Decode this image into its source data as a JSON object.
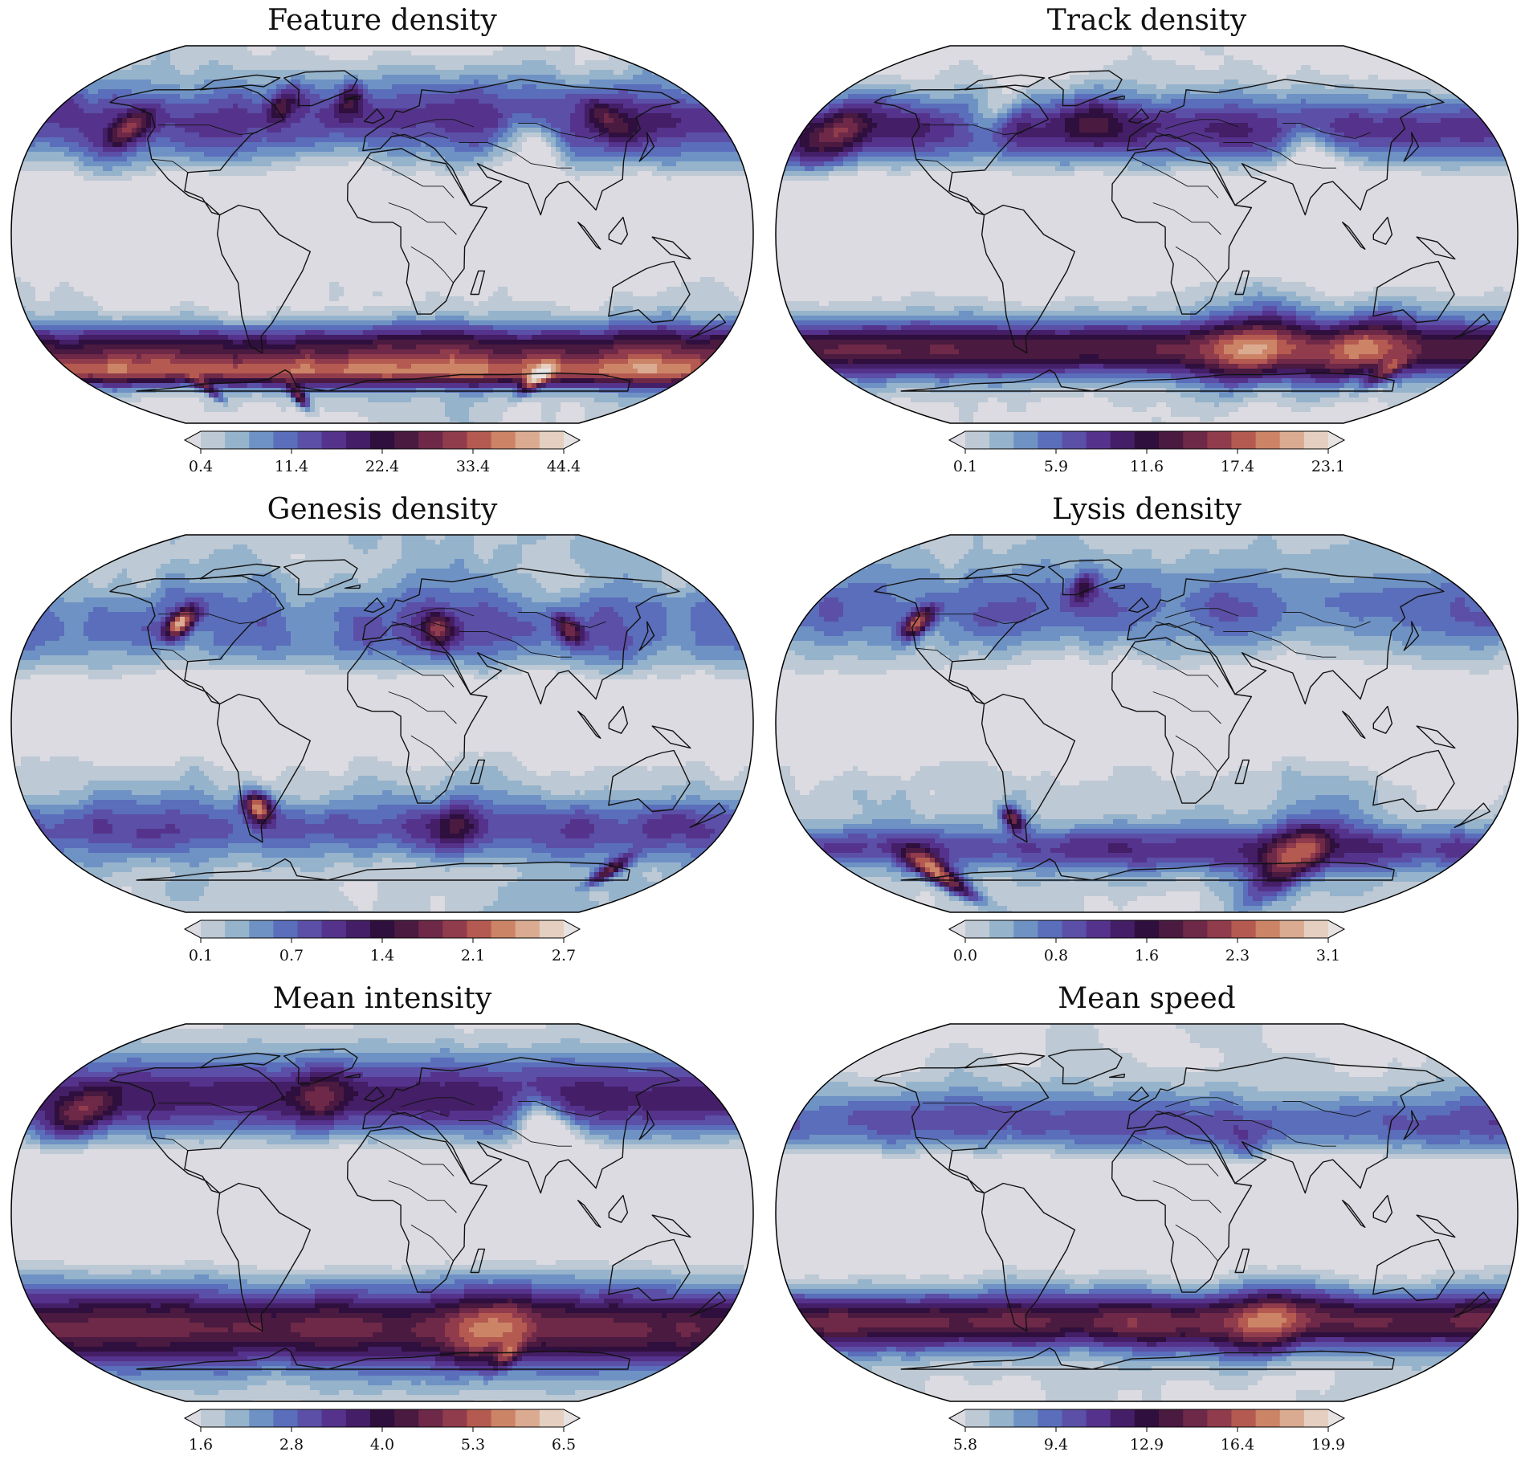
{
  "chart_data": [
    {
      "type": "heatmap",
      "title": "Feature density",
      "colorbar": {
        "ticks": [
          "0.4",
          "11.4",
          "22.4",
          "33.4",
          "44.4"
        ],
        "min": 0.4,
        "max": 44.4,
        "extend": "both"
      },
      "projection": "Robinson",
      "pattern": "feature"
    },
    {
      "type": "heatmap",
      "title": "Track density",
      "colorbar": {
        "ticks": [
          "0.1",
          "5.9",
          "11.6",
          "17.4",
          "23.1"
        ],
        "min": 0.1,
        "max": 23.1,
        "extend": "both"
      },
      "projection": "Robinson",
      "pattern": "track"
    },
    {
      "type": "heatmap",
      "title": "Genesis density",
      "colorbar": {
        "ticks": [
          "0.1",
          "0.7",
          "1.4",
          "2.1",
          "2.7"
        ],
        "min": 0.1,
        "max": 2.7,
        "extend": "both"
      },
      "projection": "Robinson",
      "pattern": "genesis"
    },
    {
      "type": "heatmap",
      "title": "Lysis density",
      "colorbar": {
        "ticks": [
          "0.0",
          "0.8",
          "1.6",
          "2.3",
          "3.1"
        ],
        "min": 0.0,
        "max": 3.1,
        "extend": "both"
      },
      "projection": "Robinson",
      "pattern": "lysis"
    },
    {
      "type": "heatmap",
      "title": "Mean intensity",
      "colorbar": {
        "ticks": [
          "1.6",
          "2.8",
          "4.0",
          "5.3",
          "6.5"
        ],
        "min": 1.6,
        "max": 6.5,
        "extend": "both"
      },
      "projection": "Robinson",
      "pattern": "intensity"
    },
    {
      "type": "heatmap",
      "title": "Mean speed",
      "colorbar": {
        "ticks": [
          "5.8",
          "9.4",
          "12.9",
          "16.4",
          "19.9"
        ],
        "min": 5.8,
        "max": 19.9,
        "extend": "both"
      },
      "projection": "Robinson",
      "pattern": "speed"
    }
  ],
  "colormap": [
    "#dcdbe1",
    "#bdc9d4",
    "#96b3cc",
    "#6e92c4",
    "#5a6ebb",
    "#5b4fa7",
    "#55338c",
    "#441e66",
    "#2f0f3d",
    "#4a1a40",
    "#6e2848",
    "#913c4c",
    "#b55a50",
    "#cc8466",
    "#dbab91",
    "#e5cfc1",
    "#e8e3e3"
  ]
}
